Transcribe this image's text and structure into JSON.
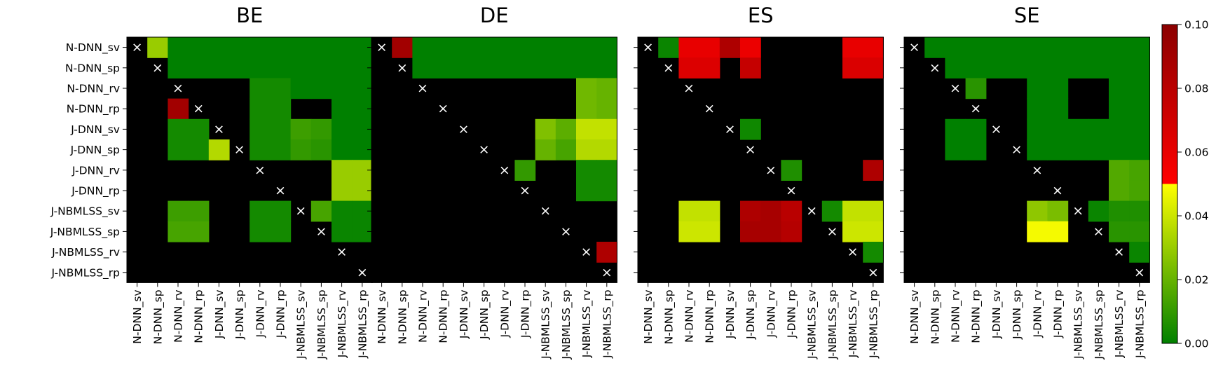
{
  "colors": {
    "cell_none": "#000000",
    "scale_low": "#008000",
    "scale_mid": "#ffff00",
    "scale_high_start": "#ff0000",
    "scale_top": "#8b0000",
    "marker": "#ffffff"
  },
  "chart_data": {
    "type": "heatmap",
    "value_range": [
      0,
      0.1
    ],
    "diagonal_marker": "×",
    "models": [
      "N-DNN_sv",
      "N-DNN_sp",
      "N-DNN_rv",
      "N-DNN_rp",
      "J-DNN_sv",
      "J-DNN_sp",
      "J-DNN_rv",
      "J-DNN_rp",
      "J-NBMLSS_sv",
      "J-NBMLSS_sp",
      "J-NBMLSS_rv",
      "J-NBMLSS_rp"
    ],
    "colorbar": {
      "ticks": [
        0.0,
        0.02,
        0.04,
        0.06,
        0.08,
        0.1
      ],
      "tick_labels": [
        "0.00",
        "0.02",
        "0.04",
        "0.06",
        "0.08",
        "0.10"
      ]
    },
    "panels": [
      {
        "title": "BE",
        "values": [
          [
            null,
            0.03,
            0.0,
            0.0,
            0.0,
            0.0,
            0.0,
            0.0,
            0.0,
            0.0,
            0.0,
            0.0
          ],
          [
            null,
            null,
            0.0,
            0.0,
            0.0,
            0.0,
            0.0,
            0.0,
            0.0,
            0.0,
            0.0,
            0.0
          ],
          [
            null,
            null,
            null,
            null,
            null,
            null,
            0.004,
            0.004,
            0.0,
            0.0,
            0.0,
            0.0
          ],
          [
            null,
            null,
            0.09,
            null,
            null,
            null,
            0.004,
            0.004,
            null,
            null,
            0.0,
            0.0
          ],
          [
            null,
            null,
            0.004,
            0.004,
            null,
            null,
            0.004,
            0.004,
            0.012,
            0.01,
            0.0,
            0.0
          ],
          [
            null,
            null,
            0.004,
            0.004,
            0.035,
            null,
            0.004,
            0.004,
            0.01,
            0.008,
            0.0,
            0.0
          ],
          [
            null,
            null,
            null,
            null,
            null,
            null,
            null,
            null,
            null,
            null,
            0.03,
            0.03
          ],
          [
            null,
            null,
            null,
            null,
            null,
            null,
            null,
            null,
            null,
            null,
            0.03,
            0.03
          ],
          [
            null,
            null,
            0.012,
            0.012,
            null,
            null,
            0.004,
            0.004,
            null,
            0.014,
            0.002,
            0.002
          ],
          [
            null,
            null,
            0.014,
            0.014,
            null,
            null,
            0.004,
            0.004,
            null,
            null,
            0.002,
            0.002
          ],
          [
            null,
            null,
            null,
            null,
            null,
            null,
            null,
            null,
            null,
            null,
            null,
            null
          ],
          [
            null,
            null,
            null,
            null,
            null,
            null,
            null,
            null,
            null,
            null,
            null,
            null
          ]
        ]
      },
      {
        "title": "DE",
        "values": [
          [
            null,
            0.09,
            0.0,
            0.0,
            0.0,
            0.0,
            0.0,
            0.0,
            0.0,
            0.0,
            0.0,
            0.0
          ],
          [
            null,
            null,
            0.0,
            0.0,
            0.0,
            0.0,
            0.0,
            0.0,
            0.0,
            0.0,
            0.0,
            0.0
          ],
          [
            null,
            null,
            null,
            null,
            null,
            null,
            null,
            null,
            null,
            null,
            0.022,
            0.02
          ],
          [
            null,
            null,
            null,
            null,
            null,
            null,
            null,
            null,
            null,
            null,
            0.022,
            0.02
          ],
          [
            null,
            null,
            null,
            null,
            null,
            null,
            null,
            null,
            0.025,
            0.018,
            0.038,
            0.038
          ],
          [
            null,
            null,
            null,
            null,
            null,
            null,
            null,
            null,
            0.02,
            0.014,
            0.035,
            0.035
          ],
          [
            null,
            null,
            null,
            null,
            null,
            null,
            null,
            0.01,
            null,
            null,
            0.004,
            0.004
          ],
          [
            null,
            null,
            null,
            null,
            null,
            null,
            null,
            null,
            null,
            null,
            0.004,
            0.004
          ],
          [
            null,
            null,
            null,
            null,
            null,
            null,
            null,
            null,
            null,
            null,
            null,
            null
          ],
          [
            null,
            null,
            null,
            null,
            null,
            null,
            null,
            null,
            null,
            null,
            null,
            null
          ],
          [
            null,
            null,
            null,
            null,
            null,
            null,
            null,
            null,
            null,
            null,
            null,
            0.085
          ],
          [
            null,
            null,
            null,
            null,
            null,
            null,
            null,
            null,
            null,
            null,
            null,
            null
          ]
        ]
      },
      {
        "title": "ES",
        "values": [
          [
            null,
            0.002,
            0.06,
            0.06,
            0.085,
            0.058,
            null,
            null,
            null,
            null,
            0.06,
            0.06
          ],
          [
            null,
            null,
            0.065,
            0.065,
            null,
            0.075,
            null,
            null,
            null,
            null,
            0.066,
            0.066
          ],
          [
            null,
            null,
            null,
            null,
            null,
            null,
            null,
            null,
            null,
            null,
            null,
            null
          ],
          [
            null,
            null,
            null,
            null,
            null,
            null,
            null,
            null,
            null,
            null,
            null,
            null
          ],
          [
            null,
            null,
            null,
            null,
            null,
            0.003,
            null,
            null,
            null,
            null,
            null,
            null
          ],
          [
            null,
            null,
            null,
            null,
            null,
            null,
            null,
            null,
            null,
            null,
            null,
            null
          ],
          [
            null,
            null,
            null,
            null,
            null,
            null,
            null,
            0.006,
            null,
            null,
            null,
            0.085
          ],
          [
            null,
            null,
            null,
            null,
            null,
            null,
            null,
            null,
            null,
            null,
            null,
            null
          ],
          [
            null,
            null,
            0.038,
            0.038,
            null,
            0.085,
            0.088,
            0.08,
            null,
            0.004,
            0.038,
            0.038
          ],
          [
            null,
            null,
            0.04,
            0.04,
            null,
            0.088,
            0.088,
            0.082,
            null,
            null,
            0.04,
            0.04
          ],
          [
            null,
            null,
            null,
            null,
            null,
            null,
            null,
            null,
            null,
            null,
            null,
            0.004
          ],
          [
            null,
            null,
            null,
            null,
            null,
            null,
            null,
            null,
            null,
            null,
            null,
            null
          ]
        ]
      },
      {
        "title": "SE",
        "values": [
          [
            null,
            0.0,
            0.0,
            0.0,
            0.0,
            0.0,
            0.0,
            0.0,
            0.0,
            0.0,
            0.0,
            0.0
          ],
          [
            null,
            null,
            0.0,
            0.0,
            0.0,
            0.0,
            0.0,
            0.0,
            0.0,
            0.0,
            0.0,
            0.0
          ],
          [
            null,
            null,
            null,
            0.008,
            null,
            null,
            0.0,
            0.0,
            null,
            null,
            0.0,
            0.0
          ],
          [
            null,
            null,
            null,
            null,
            null,
            null,
            0.0,
            0.0,
            null,
            null,
            0.0,
            0.0
          ],
          [
            null,
            null,
            0.0,
            0.0,
            null,
            null,
            0.0,
            0.0,
            0.0,
            0.0,
            0.0,
            0.0
          ],
          [
            null,
            null,
            0.0,
            0.0,
            null,
            null,
            0.0,
            0.0,
            0.0,
            0.0,
            0.0,
            0.0
          ],
          [
            null,
            null,
            null,
            null,
            null,
            null,
            null,
            null,
            null,
            null,
            0.016,
            0.014
          ],
          [
            null,
            null,
            null,
            null,
            null,
            null,
            null,
            null,
            null,
            null,
            0.016,
            0.014
          ],
          [
            null,
            null,
            null,
            null,
            null,
            null,
            0.028,
            0.024,
            null,
            0.002,
            0.006,
            0.006
          ],
          [
            null,
            null,
            null,
            null,
            null,
            null,
            0.048,
            0.048,
            null,
            null,
            0.008,
            0.008
          ],
          [
            null,
            null,
            null,
            null,
            null,
            null,
            null,
            null,
            null,
            null,
            null,
            0.002
          ],
          [
            null,
            null,
            null,
            null,
            null,
            null,
            null,
            null,
            null,
            null,
            null,
            null
          ]
        ]
      }
    ]
  }
}
